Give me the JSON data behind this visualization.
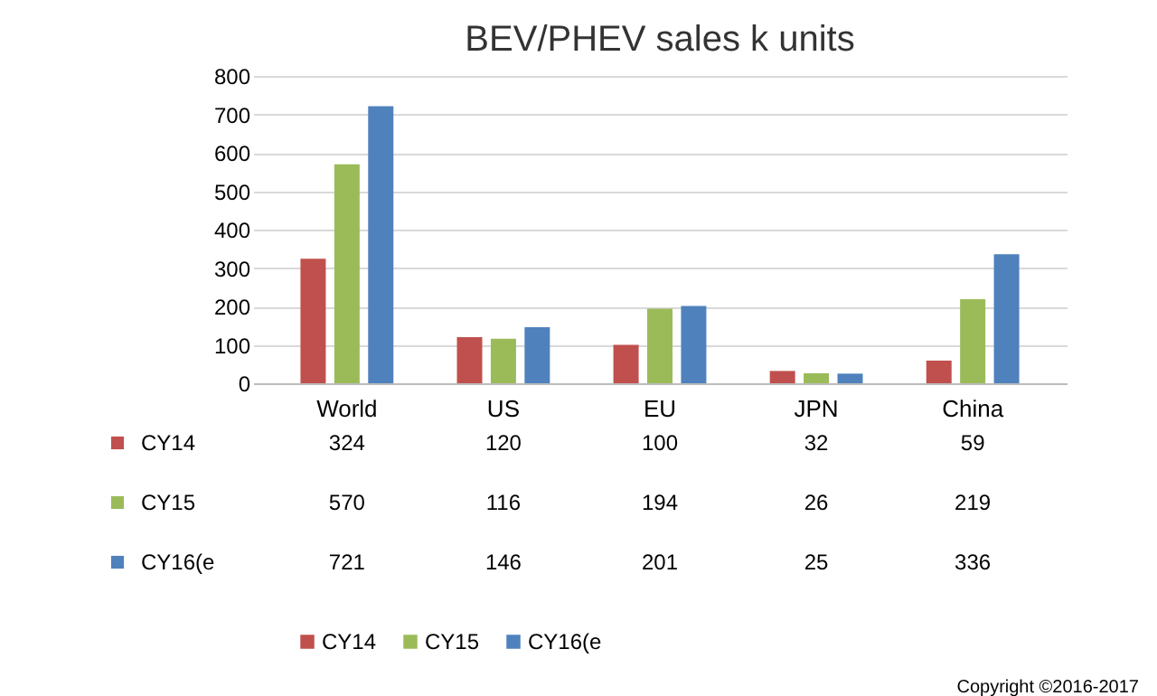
{
  "chart_data": {
    "type": "bar",
    "title": "BEV/PHEV sales k units",
    "categories": [
      "World",
      "US",
      "EU",
      "JPN",
      "China"
    ],
    "series": [
      {
        "name": "CY14",
        "color": "#c0504d",
        "values": [
          324,
          120,
          100,
          32,
          59
        ]
      },
      {
        "name": "CY15",
        "color": "#9bbb59",
        "values": [
          570,
          116,
          194,
          26,
          219
        ]
      },
      {
        "name": "CY16(e",
        "color": "#4f81bd",
        "values": [
          721,
          146,
          201,
          25,
          336
        ]
      }
    ],
    "ylim": [
      0,
      800
    ],
    "yticks": [
      0,
      100,
      200,
      300,
      400,
      500,
      600,
      700,
      800
    ],
    "grid": "y",
    "legend": "bottom",
    "data_labels": true,
    "annotations": [
      "Copyright ©2016-2017"
    ]
  }
}
